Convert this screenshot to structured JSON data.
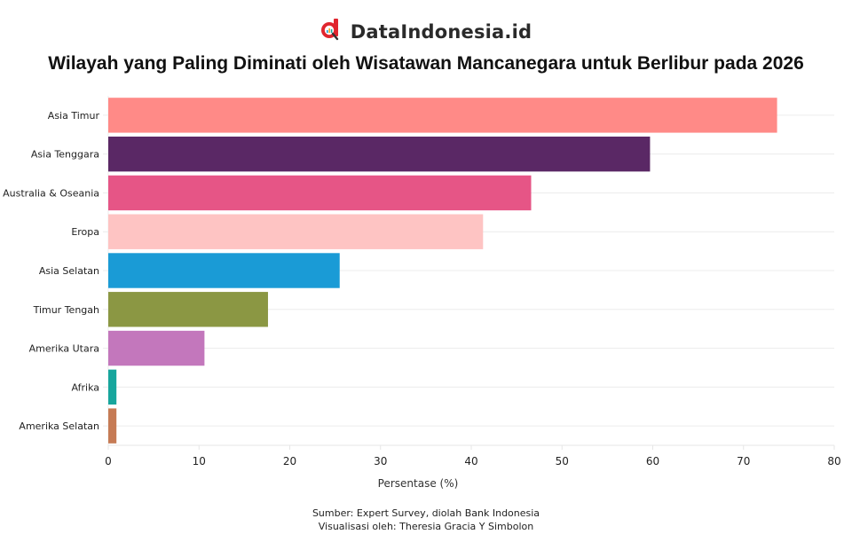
{
  "brand": {
    "name": "DataIndonesia.id",
    "logo_icon": "datasearch-logo-icon",
    "accent": "#e0252e"
  },
  "footer": {
    "source": "Sumber: Expert Survey, diolah Bank Indonesia",
    "credit": "Visualisasi oleh: Theresia Gracia Y Simbolon"
  },
  "chart_data": {
    "type": "bar",
    "orientation": "horizontal",
    "title": "Wilayah yang Paling Diminati oleh Wisatawan Mancanegara untuk Berlibur pada 2026",
    "xlabel": "Persentase (%)",
    "ylabel": "",
    "xlim": [
      0,
      80
    ],
    "xticks": [
      0,
      10,
      20,
      30,
      40,
      50,
      60,
      70,
      80
    ],
    "grid": "horizontal-per-category",
    "legend": "none",
    "categories": [
      "Asia Timur",
      "Asia Tenggara",
      "Australia & Oseania",
      "Eropa",
      "Asia Selatan",
      "Timur Tengah",
      "Amerika Utara",
      "Afrika",
      "Amerika Selatan"
    ],
    "values": [
      73.7,
      59.7,
      46.6,
      41.3,
      25.5,
      17.6,
      10.6,
      0.9,
      0.9
    ],
    "colors": [
      "#ff8a87",
      "#5a2865",
      "#e65586",
      "#fec4c3",
      "#1a9bd6",
      "#8b9743",
      "#c377bc",
      "#17a69d",
      "#c67b55"
    ]
  }
}
